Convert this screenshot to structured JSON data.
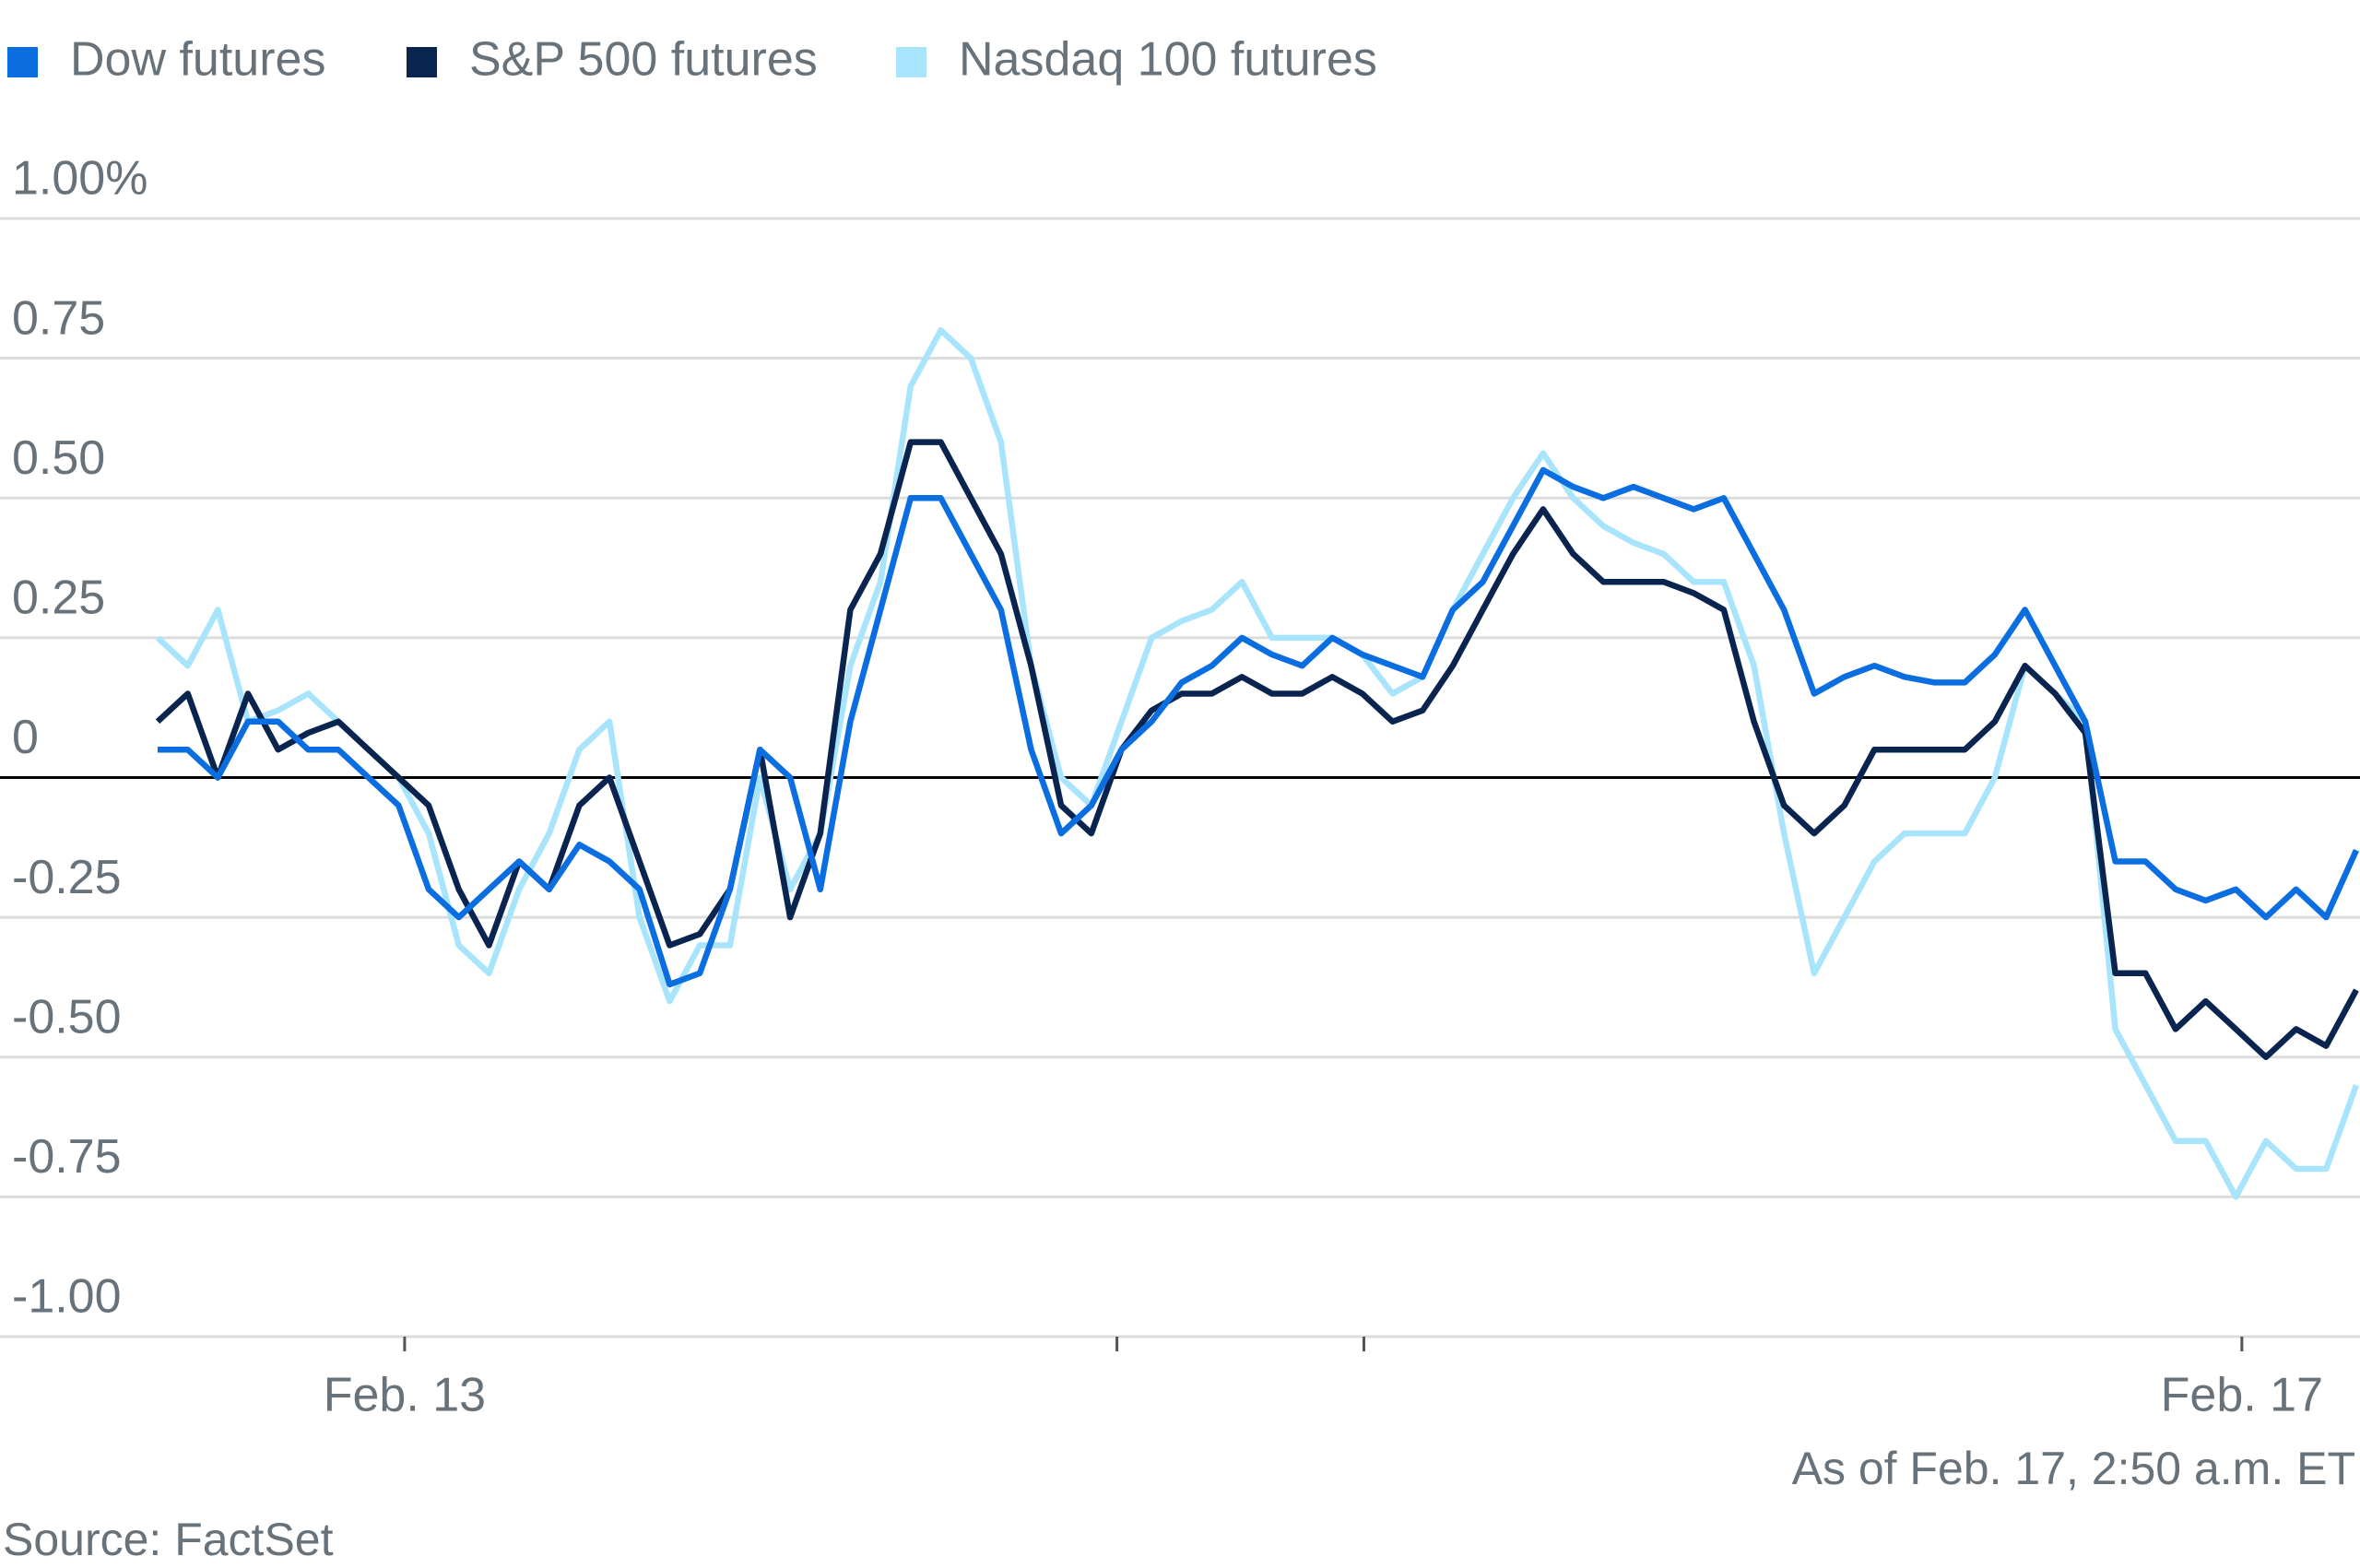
{
  "chart_data": {
    "type": "line",
    "annotations": [
      "As of Feb. 17, 2:50 a.m. ET",
      "Source: FactSet"
    ],
    "x": [
      0,
      1,
      2,
      3,
      4,
      5,
      6,
      7,
      8,
      9,
      10,
      11,
      12,
      13,
      14,
      15,
      16,
      17,
      18,
      19,
      20,
      21,
      22,
      23,
      24,
      25,
      26,
      27,
      28,
      29,
      30,
      31,
      32,
      33,
      34,
      35,
      36,
      37,
      38,
      39,
      40,
      41,
      42,
      43,
      44,
      45,
      46,
      47,
      48,
      49,
      50,
      51,
      52,
      53,
      54,
      55,
      56,
      57,
      58,
      59,
      60,
      61,
      62,
      63,
      64,
      65,
      66,
      67,
      68,
      69,
      70,
      71,
      72,
      73
    ],
    "xlim": [
      0,
      73
    ],
    "xticks": [
      {
        "value": 8.2,
        "label": "Feb. 13"
      },
      {
        "value": 31.85,
        "label": null
      },
      {
        "value": 40.05,
        "label": null
      },
      {
        "value": 69.2,
        "label": "Feb. 17"
      }
    ],
    "ylim": [
      -1,
      1
    ],
    "yticks": [
      {
        "value": 1,
        "label": "1.00%"
      },
      {
        "value": 0.75,
        "label": "0.75"
      },
      {
        "value": 0.5,
        "label": "0.50"
      },
      {
        "value": 0.25,
        "label": "0.25"
      },
      0,
      {
        "value": -0.25,
        "label": "-0.25"
      },
      {
        "value": -0.5,
        "label": "-0.50"
      },
      {
        "value": -0.75,
        "label": "-0.75"
      },
      {
        "value": -1,
        "label": "-1.00"
      }
    ],
    "grid": true,
    "legend": "top-left",
    "series": [
      {
        "name": "Dow futures",
        "color": "#0b6ee0",
        "values": [
          0.05,
          0.05,
          0.0,
          0.1,
          0.1,
          0.05,
          0.05,
          0.0,
          -0.05,
          -0.2,
          -0.25,
          -0.2,
          -0.15,
          -0.2,
          -0.12,
          -0.15,
          -0.2,
          -0.37,
          -0.35,
          -0.2,
          0.05,
          0.0,
          -0.2,
          0.1,
          0.3,
          0.5,
          0.5,
          0.4,
          0.3,
          0.05,
          -0.1,
          -0.05,
          0.05,
          0.1,
          0.17,
          0.2,
          0.25,
          0.22,
          0.2,
          0.25,
          0.22,
          0.2,
          0.18,
          0.3,
          0.35,
          0.45,
          0.55,
          0.52,
          0.5,
          0.52,
          0.5,
          0.48,
          0.5,
          0.4,
          0.3,
          0.15,
          0.18,
          0.2,
          0.18,
          0.17,
          0.17,
          0.22,
          0.3,
          0.2,
          0.1,
          -0.15,
          -0.15,
          -0.2,
          -0.22,
          -0.2,
          -0.25,
          -0.2,
          -0.25,
          -0.13
        ]
      },
      {
        "name": "S&P 500 futures",
        "color": "#0a2450",
        "values": [
          0.1,
          0.15,
          0.0,
          0.15,
          0.05,
          0.08,
          0.1,
          0.05,
          0.0,
          -0.05,
          -0.2,
          -0.3,
          -0.15,
          -0.2,
          -0.05,
          0.0,
          -0.15,
          -0.3,
          -0.28,
          -0.2,
          0.05,
          -0.25,
          -0.1,
          0.3,
          0.4,
          0.6,
          0.6,
          0.5,
          0.4,
          0.2,
          -0.05,
          -0.1,
          0.05,
          0.12,
          0.15,
          0.15,
          0.18,
          0.15,
          0.15,
          0.18,
          0.15,
          0.1,
          0.12,
          0.2,
          0.3,
          0.4,
          0.48,
          0.4,
          0.35,
          0.35,
          0.35,
          0.33,
          0.3,
          0.1,
          -0.05,
          -0.1,
          -0.05,
          0.05,
          0.05,
          0.05,
          0.05,
          0.1,
          0.2,
          0.15,
          0.08,
          -0.35,
          -0.35,
          -0.45,
          -0.4,
          -0.45,
          -0.5,
          -0.45,
          -0.48,
          -0.38
        ]
      },
      {
        "name": "Nasdaq 100 futures",
        "color": "#a8e4fb",
        "values": [
          0.25,
          0.2,
          0.3,
          0.1,
          0.12,
          0.15,
          0.1,
          0.05,
          0.0,
          -0.1,
          -0.3,
          -0.35,
          -0.2,
          -0.1,
          0.05,
          0.1,
          -0.25,
          -0.4,
          -0.3,
          -0.3,
          0.0,
          -0.2,
          -0.1,
          0.2,
          0.35,
          0.7,
          0.8,
          0.75,
          0.6,
          0.2,
          0.0,
          -0.05,
          0.1,
          0.25,
          0.28,
          0.3,
          0.35,
          0.25,
          0.25,
          0.25,
          0.22,
          0.15,
          0.18,
          0.3,
          0.4,
          0.5,
          0.58,
          0.5,
          0.45,
          0.42,
          0.4,
          0.35,
          0.35,
          0.2,
          -0.1,
          -0.35,
          -0.25,
          -0.15,
          -0.1,
          -0.1,
          -0.1,
          0.0,
          0.2,
          0.15,
          0.1,
          -0.45,
          -0.55,
          -0.65,
          -0.65,
          -0.75,
          -0.65,
          -0.7,
          -0.7,
          -0.55
        ]
      }
    ]
  }
}
